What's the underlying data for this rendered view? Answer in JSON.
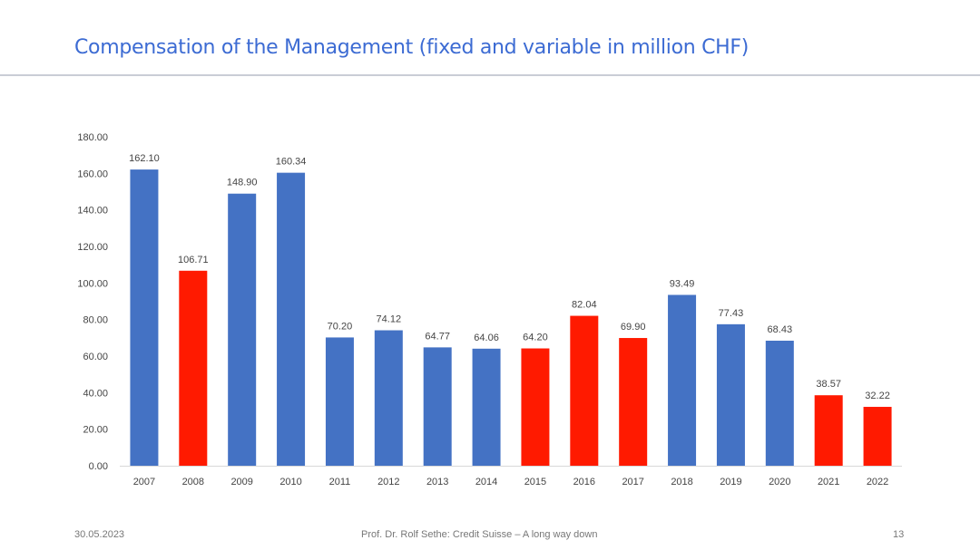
{
  "slide": {
    "title": "Compensation of the Management (fixed and variable in million CHF)",
    "footer_date": "30.05.2023",
    "footer_text": "Prof. Dr. Rolf Sethe: Credit Suisse – A long way down",
    "page_number": "13"
  },
  "chart_data": {
    "type": "bar",
    "categories": [
      "2007",
      "2008",
      "2009",
      "2010",
      "2011",
      "2012",
      "2013",
      "2014",
      "2015",
      "2016",
      "2017",
      "2018",
      "2019",
      "2020",
      "2021",
      "2022"
    ],
    "values": [
      162.1,
      106.71,
      148.9,
      160.34,
      70.2,
      74.12,
      64.77,
      64.06,
      64.2,
      82.04,
      69.9,
      93.49,
      77.43,
      68.43,
      38.57,
      32.22
    ],
    "value_labels": [
      "162.10",
      "106.71",
      "148.90",
      "160.34",
      "70.20",
      "74.12",
      "64.77",
      "64.06",
      "64.20",
      "82.04",
      "69.90",
      "93.49",
      "77.43",
      "68.43",
      "38.57",
      "32.22"
    ],
    "bar_colors": [
      "#4472c4",
      "#ff1a00",
      "#4472c4",
      "#4472c4",
      "#4472c4",
      "#4472c4",
      "#4472c4",
      "#4472c4",
      "#ff1a00",
      "#ff1a00",
      "#ff1a00",
      "#4472c4",
      "#4472c4",
      "#4472c4",
      "#ff1a00",
      "#ff1a00"
    ],
    "y_ticks": [
      "0.00",
      "20.00",
      "40.00",
      "60.00",
      "80.00",
      "100.00",
      "120.00",
      "140.00",
      "160.00",
      "180.00"
    ],
    "ylim": [
      0,
      180
    ],
    "grid": false,
    "legend": "none",
    "title": "",
    "xlabel": "",
    "ylabel": ""
  },
  "colors": {
    "blue": "#4472c4",
    "red": "#ff1a00",
    "title": "#3c6bd3"
  }
}
